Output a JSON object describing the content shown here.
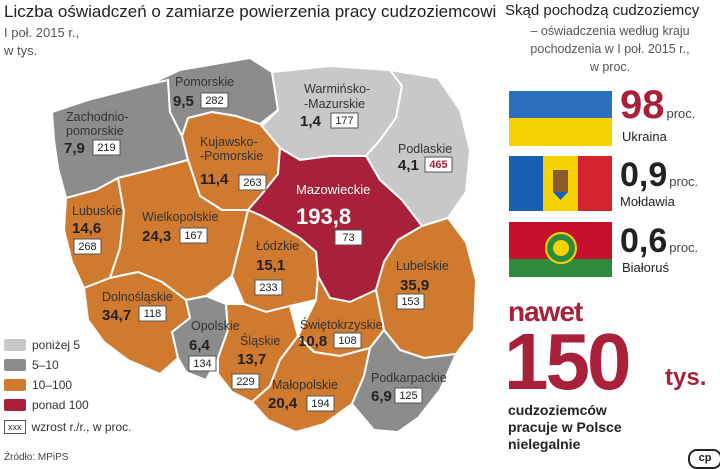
{
  "map": {
    "title": "Liczba oświadczeń o zamiarze powierzenia pracy cudzoziemcowi",
    "subtitle_line1": "I poł. 2015 r.,",
    "subtitle_line2": "w tys.",
    "colors": {
      "below5": "#c8c8c8",
      "5to10": "#8c8c8c",
      "10to100": "#d07a30",
      "over100": "#a8203a"
    },
    "regions": [
      {
        "id": "pomorskie",
        "name": "Pomorskie",
        "value": "9,5",
        "growth": "282",
        "category": "5to10"
      },
      {
        "id": "warminsko-mazurskie",
        "name_line1": "Warmińsko-",
        "name_line2": "-Mazurskie",
        "value": "1,4",
        "growth": "177",
        "category": "below5"
      },
      {
        "id": "zachodniopomorskie",
        "name_line1": "Zachodnio-",
        "name_line2": "pomorskie",
        "value": "7,9",
        "growth": "219",
        "category": "5to10"
      },
      {
        "id": "kujawsko-pomorskie",
        "name_line1": "Kujawsko-",
        "name_line2": "-Pomorskie",
        "value": "11,4",
        "growth": "263",
        "category": "10to100"
      },
      {
        "id": "podlaskie",
        "name": "Podlaskie",
        "value": "4,1",
        "growth": "465",
        "category": "below5"
      },
      {
        "id": "mazowieckie",
        "name": "Mazowieckie",
        "value": "193,8",
        "growth": "73",
        "category": "over100"
      },
      {
        "id": "lubuskie",
        "name": "Lubuskie",
        "value": "14,6",
        "growth": "268",
        "category": "10to100"
      },
      {
        "id": "wielkopolskie",
        "name": "Wielkopolskie",
        "value": "24,3",
        "growth": "167",
        "category": "10to100"
      },
      {
        "id": "lodzkie",
        "name": "Łódzkie",
        "value": "15,1",
        "growth": "233",
        "category": "10to100"
      },
      {
        "id": "lubelskie",
        "name": "Lubelskie",
        "value": "35,9",
        "growth": "153",
        "category": "10to100"
      },
      {
        "id": "dolnoslaskie",
        "name": "Dolnośląskie",
        "value": "34,7",
        "growth": "118",
        "category": "10to100"
      },
      {
        "id": "opolskie",
        "name": "Opolskie",
        "value": "6,4",
        "growth": "134",
        "category": "5to10"
      },
      {
        "id": "swietokrzyskie",
        "name": "Świętokrzyskie",
        "value": "10,8",
        "growth": "108",
        "category": "10to100"
      },
      {
        "id": "slaskie",
        "name": "Śląskie",
        "value": "13,7",
        "growth": "229",
        "category": "10to100"
      },
      {
        "id": "malopolskie",
        "name": "Małopolskie",
        "value": "20,4",
        "growth": "194",
        "category": "10to100"
      },
      {
        "id": "podkarpackie",
        "name": "Podkarpackie",
        "value": "6,9",
        "growth": "125",
        "category": "5to10"
      }
    ]
  },
  "legend": [
    {
      "label": "poniżej 5",
      "color": "#c8c8c8"
    },
    {
      "label": "5–10",
      "color": "#8c8c8c"
    },
    {
      "label": "10–100",
      "color": "#d07a30"
    },
    {
      "label": "ponad 100",
      "color": "#a8203a"
    },
    {
      "label": "wzrost r./r., w proc.",
      "box_text": "xxx"
    }
  ],
  "source": "Źródło: MPiPS",
  "origin": {
    "title": "Skąd pochodzą cudzoziemcy",
    "subtitle_line1": "– oświadczenia według kraju",
    "subtitle_line2": "pochodzenia w I poł. 2015 r.,",
    "subtitle_line3": "w proc.",
    "countries": [
      {
        "name": "Ukraina",
        "value": "98",
        "unit": "proc.",
        "value_color": "#a8203a"
      },
      {
        "name": "Mołdawia",
        "value": "0,9",
        "unit": "proc.",
        "value_color": "#222222"
      },
      {
        "name": "Białoruś",
        "value": "0,6",
        "unit": "proc.",
        "value_color": "#222222"
      }
    ]
  },
  "highlight": {
    "prefix": "nawet",
    "number": "150",
    "unit": "tys.",
    "line1": "cudzoziemców",
    "line2": "pracuje w Polsce",
    "line3": "nielegalnie"
  },
  "badge": "cp"
}
